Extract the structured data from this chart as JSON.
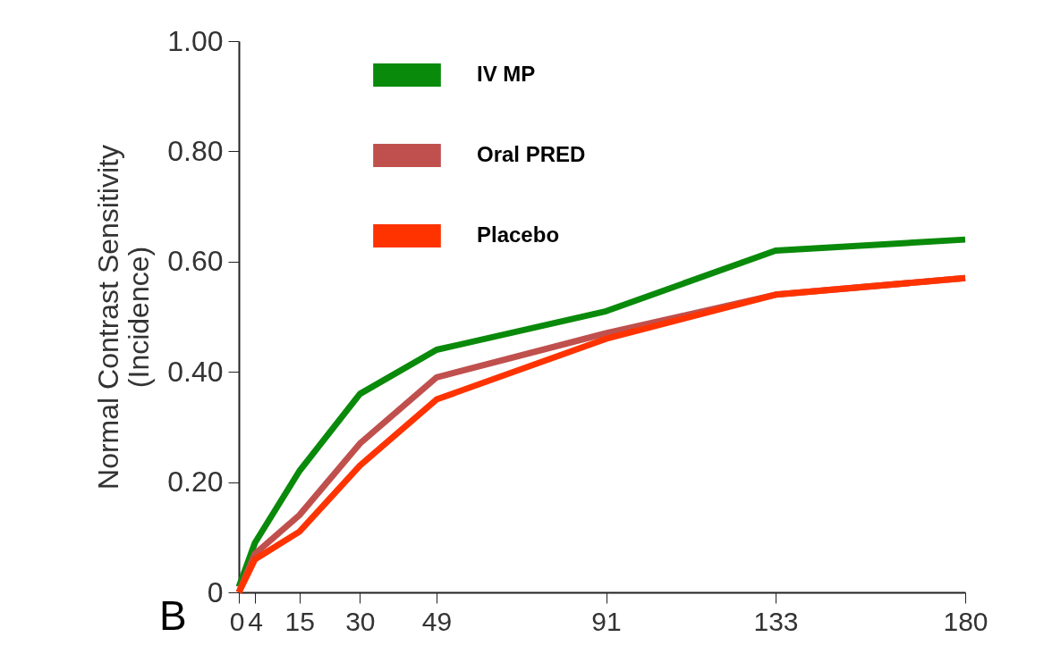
{
  "chart_data": {
    "type": "line",
    "ylabel": "Normal Contrast Sensitivity\n(Incidence)",
    "annotations": [
      "B"
    ],
    "x": [
      0,
      4,
      15,
      30,
      49,
      91,
      133,
      180
    ],
    "series": [
      {
        "name": "IV MP",
        "color": "#0a8a0a",
        "values": [
          0.01,
          0.09,
          0.22,
          0.36,
          0.44,
          0.51,
          0.62,
          0.64
        ]
      },
      {
        "name": "Oral PRED",
        "color": "#c0504d",
        "values": [
          0,
          0.07,
          0.14,
          0.27,
          0.39,
          0.47,
          0.54,
          0.57
        ]
      },
      {
        "name": "Placebo",
        "color": "#ff3300",
        "values": [
          0,
          0.06,
          0.11,
          0.23,
          0.35,
          0.46,
          0.54,
          0.57
        ]
      }
    ],
    "xlim": [
      0,
      180
    ],
    "xticks": [
      0,
      4,
      15,
      30,
      49,
      91,
      133,
      180
    ],
    "ylim": [
      0,
      1
    ],
    "yticks": [
      0,
      {
        "value": 0.2,
        "label": "0.20"
      },
      {
        "value": 0.4,
        "label": "0.40"
      },
      {
        "value": 0.6,
        "label": "0.60"
      },
      {
        "value": 0.8,
        "label": "0.80"
      },
      {
        "value": 1,
        "label": "1.00"
      }
    ],
    "grid": false,
    "legend": "top",
    "marker": "none",
    "line_style": "solid"
  }
}
